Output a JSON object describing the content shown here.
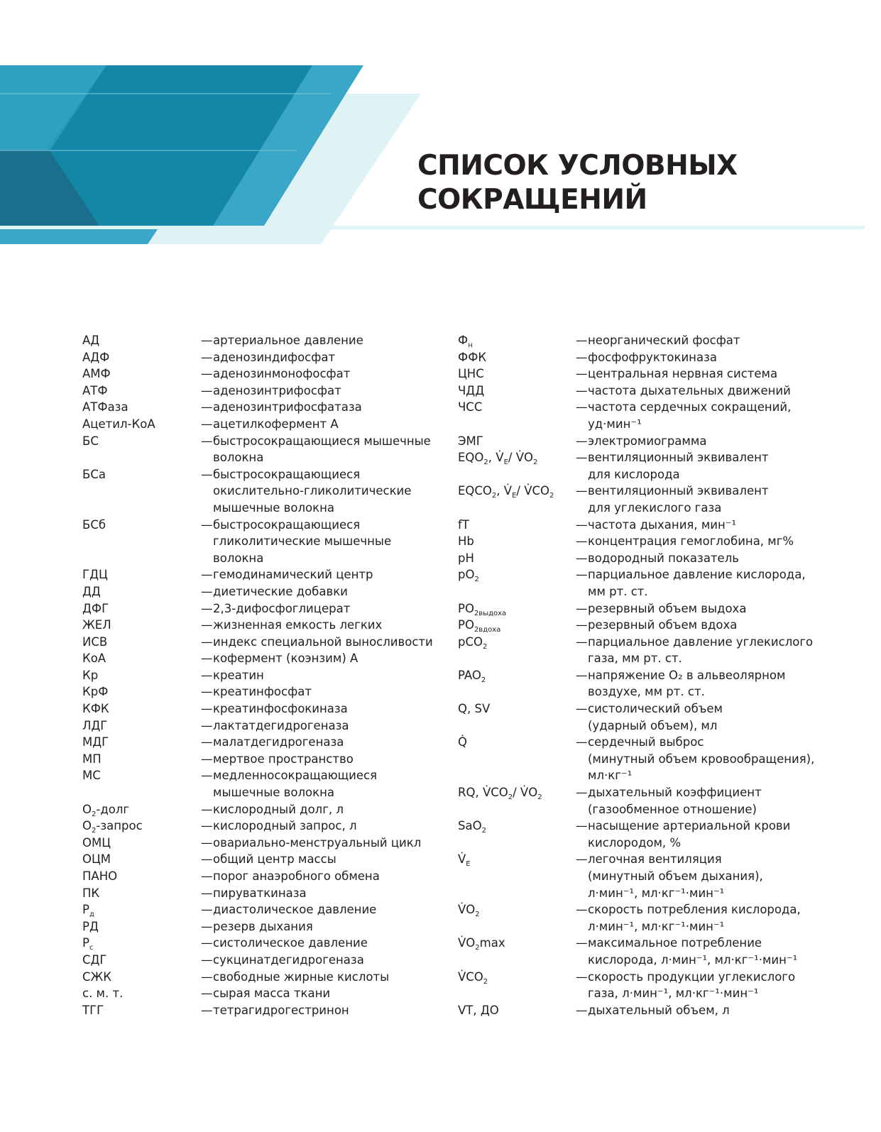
{
  "title": [
    "СПИСОК УСЛОВНЫХ",
    "СОКРАЩЕНИЙ"
  ],
  "colors": {
    "dark_blue": "#1487a8",
    "mid_blue": "#3aa6c8",
    "light_cyan": "#dff3f5",
    "text": "#231f20"
  },
  "dash": "—",
  "left": [
    {
      "term": [
        [
          "АД"
        ]
      ],
      "def": [
        "артериальное давление"
      ]
    },
    {
      "term": [
        [
          "АДФ"
        ]
      ],
      "def": [
        "аденозиндифосфат"
      ]
    },
    {
      "term": [
        [
          "АМФ"
        ]
      ],
      "def": [
        "аденозинмонофосфат"
      ]
    },
    {
      "term": [
        [
          "АТФ"
        ]
      ],
      "def": [
        "аденозинтрифосфат"
      ]
    },
    {
      "term": [
        [
          "АТФаза"
        ]
      ],
      "def": [
        "аденозинтрифосфатаза"
      ]
    },
    {
      "term": [
        [
          "Ацетил-КоА"
        ]
      ],
      "def": [
        "ацетилкофермент А"
      ]
    },
    {
      "term": [
        [
          "БС"
        ]
      ],
      "def": [
        "быстросокращающиеся мышечные",
        "волокна"
      ]
    },
    {
      "term": [
        [
          "БСа"
        ]
      ],
      "def": [
        "быстросокращающиеся",
        "окислительно-гликолитические",
        "мышечные волокна"
      ]
    },
    {
      "term": [
        [
          "БСб"
        ]
      ],
      "def": [
        "быстросокращающиеся",
        "гликолитические мышечные",
        "волокна"
      ]
    },
    {
      "term": [
        [
          "ГДЦ"
        ]
      ],
      "def": [
        "гемодинамический центр"
      ]
    },
    {
      "term": [
        [
          "ДД"
        ]
      ],
      "def": [
        "диетические добавки"
      ]
    },
    {
      "term": [
        [
          "ДФГ"
        ]
      ],
      "def": [
        "2,3-дифосфоглицерат"
      ]
    },
    {
      "term": [
        [
          "ЖЕЛ"
        ]
      ],
      "def": [
        "жизненная емкость легких"
      ]
    },
    {
      "term": [
        [
          "ИСВ"
        ]
      ],
      "def": [
        "индекс специальной выносливости"
      ]
    },
    {
      "term": [
        [
          "КоА"
        ]
      ],
      "def": [
        "кофермент (коэнзим) А"
      ]
    },
    {
      "term": [
        [
          "Кр"
        ]
      ],
      "def": [
        "креатин"
      ]
    },
    {
      "term": [
        [
          "КрФ"
        ]
      ],
      "def": [
        "креатинфосфат"
      ]
    },
    {
      "term": [
        [
          "КФК"
        ]
      ],
      "def": [
        "креатинфосфокиназа"
      ]
    },
    {
      "term": [
        [
          "ЛДГ"
        ]
      ],
      "def": [
        "лактатдегидрогеназа"
      ]
    },
    {
      "term": [
        [
          "МДГ"
        ]
      ],
      "def": [
        "малатдегидрогеназа"
      ]
    },
    {
      "term": [
        [
          "МП"
        ]
      ],
      "def": [
        "мертвое пространство"
      ]
    },
    {
      "term": [
        [
          "МС"
        ]
      ],
      "def": [
        "медленносокращающиеся",
        "мышечные волокна"
      ]
    },
    {
      "term": [
        [
          "О"
        ],
        [
          "2",
          "sub"
        ],
        [
          "-долг"
        ]
      ],
      "def": [
        "кислородный долг, л"
      ]
    },
    {
      "term": [
        [
          "О"
        ],
        [
          "2",
          "sub"
        ],
        [
          "-запрос"
        ]
      ],
      "def": [
        "кислородный запрос, л"
      ]
    },
    {
      "term": [
        [
          "ОМЦ"
        ]
      ],
      "def": [
        "овариально-менструальный цикл"
      ]
    },
    {
      "term": [
        [
          "ОЦМ"
        ]
      ],
      "def": [
        "общий центр массы"
      ]
    },
    {
      "term": [
        [
          "ПАНО"
        ]
      ],
      "def": [
        "порог анаэробного обмена"
      ]
    },
    {
      "term": [
        [
          "ПК"
        ]
      ],
      "def": [
        "пируваткиназа"
      ]
    },
    {
      "term": [
        [
          "Р"
        ],
        [
          "д",
          "sub"
        ]
      ],
      "def": [
        "диастолическое давление"
      ]
    },
    {
      "term": [
        [
          "РД"
        ]
      ],
      "def": [
        "резерв дыхания"
      ]
    },
    {
      "term": [
        [
          "Р"
        ],
        [
          "с",
          "sub"
        ]
      ],
      "def": [
        "систолическое давление"
      ]
    },
    {
      "term": [
        [
          "СДГ"
        ]
      ],
      "def": [
        "сукцинатдегидрогеназа"
      ]
    },
    {
      "term": [
        [
          "СЖК"
        ]
      ],
      "def": [
        "свободные жирные кислоты"
      ]
    },
    {
      "term": [
        [
          "с. м. т."
        ]
      ],
      "def": [
        "сырая масса ткани"
      ]
    },
    {
      "term": [
        [
          "ТГГ"
        ]
      ],
      "def": [
        "тетрагидрогестринон"
      ]
    }
  ],
  "right": [
    {
      "term": [
        [
          "Ф"
        ],
        [
          "н",
          "sub"
        ]
      ],
      "def": [
        "неорганический фосфат"
      ]
    },
    {
      "term": [
        [
          "ФФК"
        ]
      ],
      "def": [
        "фосфофруктокиназа"
      ]
    },
    {
      "term": [
        [
          "ЦНС"
        ]
      ],
      "def": [
        "центральная нервная система"
      ]
    },
    {
      "term": [
        [
          "ЧДД"
        ]
      ],
      "def": [
        "частота дыхательных движений"
      ]
    },
    {
      "term": [
        [
          "ЧСС"
        ]
      ],
      "def": [
        "частота сердечных сокращений,",
        "уд·мин⁻¹"
      ]
    },
    {
      "term": [
        [
          "ЭМГ"
        ]
      ],
      "def": [
        "электромиограмма"
      ]
    },
    {
      "term": [
        [
          "EQO"
        ],
        [
          "2",
          "sub"
        ],
        [
          ", V̇"
        ],
        [
          "E",
          "sub"
        ],
        [
          "/ V̇O"
        ],
        [
          "2",
          "sub"
        ]
      ],
      "def": [
        "вентиляционный эквивалент",
        "для кислорода"
      ]
    },
    {
      "term": [
        [
          "EQCO"
        ],
        [
          "2",
          "sub"
        ],
        [
          ", V̇"
        ],
        [
          "E",
          "sub"
        ],
        [
          "/ V̇CO"
        ],
        [
          "2",
          "sub"
        ]
      ],
      "def": [
        "вентиляционный эквивалент",
        "для углекислого газа"
      ]
    },
    {
      "term": [
        [
          "fT"
        ]
      ],
      "def": [
        "частота дыхания, мин⁻¹"
      ]
    },
    {
      "term": [
        [
          "Hb"
        ]
      ],
      "def": [
        "концентрация гемоглобина, мг%"
      ]
    },
    {
      "term": [
        [
          "pH"
        ]
      ],
      "def": [
        "водородный показатель"
      ]
    },
    {
      "term": [
        [
          "pO"
        ],
        [
          "2",
          "sub"
        ]
      ],
      "def": [
        "парциальное давление кислорода,",
        "мм рт. ст."
      ]
    },
    {
      "term": [
        [
          "PO"
        ],
        [
          "2выдоха",
          "sub"
        ]
      ],
      "def": [
        "резервный объем выдоха"
      ]
    },
    {
      "term": [
        [
          "PO"
        ],
        [
          "2вдоха",
          "sub"
        ]
      ],
      "def": [
        "резервный объем вдоха"
      ]
    },
    {
      "term": [
        [
          "pCO"
        ],
        [
          "2",
          "sub"
        ]
      ],
      "def": [
        "парциальное давление углекислого",
        "газа, мм рт. ст."
      ]
    },
    {
      "term": [
        [
          "PAO"
        ],
        [
          "2",
          "sub"
        ]
      ],
      "def": [
        "напряжение O₂ в альвеолярном",
        "воздухе, мм рт. ст."
      ]
    },
    {
      "term": [
        [
          "Q, SV"
        ]
      ],
      "def": [
        "систолический объем",
        "(ударный объем), мл"
      ]
    },
    {
      "term": [
        [
          "Q̇"
        ]
      ],
      "def": [
        "сердечный выброс",
        "(минутный объем кровообращения),",
        "мл·кг⁻¹"
      ]
    },
    {
      "term": [
        [
          "RQ, V̇CO"
        ],
        [
          "2",
          "sub"
        ],
        [
          "/ V̇O"
        ],
        [
          "2",
          "sub"
        ]
      ],
      "def": [
        "дыхательный коэффициент",
        "(газообменное отношение)"
      ]
    },
    {
      "term": [
        [
          "SaO"
        ],
        [
          "2",
          "sub"
        ]
      ],
      "def": [
        "насыщение артериальной крови",
        "кислородом, %"
      ]
    },
    {
      "term": [
        [
          "V̇"
        ],
        [
          "E",
          "sub"
        ]
      ],
      "def": [
        "легочная вентиляция",
        "(минутный объем дыхания),",
        "л·мин⁻¹, мл·кг⁻¹·мин⁻¹"
      ]
    },
    {
      "term": [
        [
          "V̇O"
        ],
        [
          "2",
          "sub"
        ]
      ],
      "def": [
        "скорость потребления кислорода,",
        "л·мин⁻¹, мл·кг⁻¹·мин⁻¹"
      ]
    },
    {
      "term": [
        [
          "V̇O"
        ],
        [
          "2",
          "sub"
        ],
        [
          "max"
        ]
      ],
      "def": [
        "максимальное потребление",
        "кислорода, л·мин⁻¹, мл·кг⁻¹·мин⁻¹"
      ]
    },
    {
      "term": [
        [
          "V̇CO"
        ],
        [
          "2",
          "sub"
        ]
      ],
      "def": [
        "скорость продукции углекислого",
        "газа, л·мин⁻¹, мл·кг⁻¹·мин⁻¹"
      ]
    },
    {
      "term": [
        [
          "VT, ДО"
        ]
      ],
      "def": [
        "дыхательный объем, л"
      ]
    }
  ]
}
